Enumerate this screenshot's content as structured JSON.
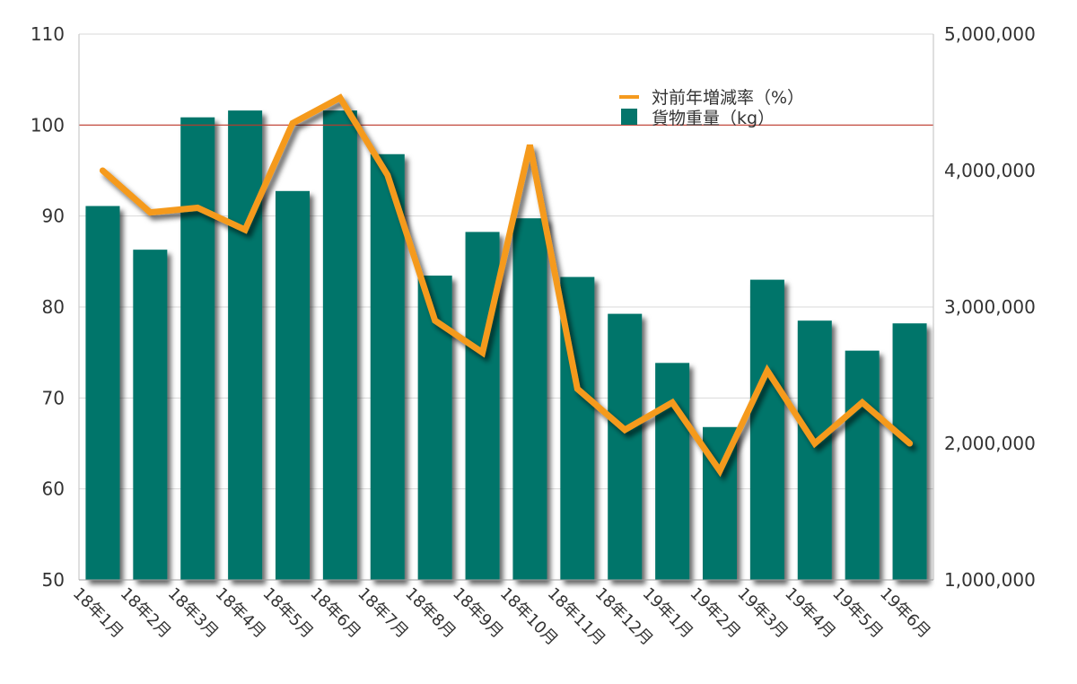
{
  "chart_data": {
    "type": "bar",
    "categories": [
      "18年1月",
      "18年2月",
      "18年3月",
      "18年4月",
      "18年5月",
      "18年6月",
      "18年7月",
      "18年8月",
      "18年9月",
      "18年10月",
      "18年11月",
      "18年12月",
      "19年1月",
      "19年2月",
      "19年3月",
      "19年4月",
      "19年5月",
      "19年6月"
    ],
    "series": [
      {
        "name": "貨物重量（kg）",
        "type": "bar",
        "axis": "right",
        "color": "#04756b",
        "values": [
          3740000,
          3420000,
          4390000,
          4440000,
          3850000,
          4440000,
          4120000,
          3230000,
          3550000,
          3650000,
          3220000,
          2950000,
          2590000,
          2120000,
          3200000,
          2900000,
          2680000,
          2880000
        ]
      },
      {
        "name": "対前年増減率（%）",
        "type": "line",
        "axis": "left",
        "color": "#f59a1e",
        "values": [
          95,
          90.4,
          90.9,
          88.5,
          100.2,
          103,
          94.5,
          78.5,
          75,
          97.8,
          71,
          66.5,
          69.5,
          62,
          73,
          65,
          69.5,
          65
        ]
      }
    ],
    "y_left": {
      "min": 50,
      "max": 110,
      "ticks": [
        "50",
        "60",
        "70",
        "80",
        "90",
        "100",
        "110"
      ]
    },
    "y_right": {
      "min": 1000000,
      "max": 5000000,
      "ticks": [
        "1,000,000",
        "2,000,000",
        "3,000,000",
        "4,000,000",
        "5,000,000"
      ]
    },
    "reference_line": {
      "value": 100,
      "axis": "left",
      "color": "#c0392b"
    },
    "grid": true,
    "legend_position": "top-right",
    "title": "",
    "xlabel": "",
    "ylabel": ""
  }
}
